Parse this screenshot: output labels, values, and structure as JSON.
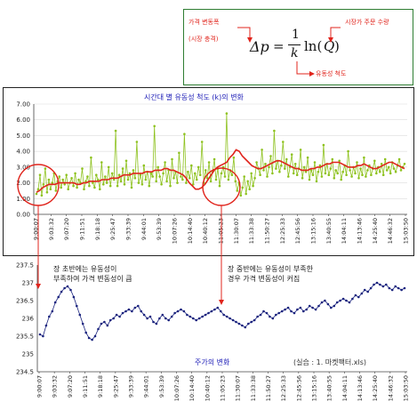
{
  "formula": {
    "lhs": "Δp",
    "eq": "=",
    "frac_num": "1",
    "frac_den": "k",
    "ln": "ln(",
    "q": "Q",
    "close": ")",
    "label_price": "가격 변동폭",
    "label_price_sub": "(시장 충격)",
    "label_q": "시장가 주문 수량",
    "label_k": "유동성 척도",
    "arrow_color": "#e0241c",
    "box_color": "#2e7d32"
  },
  "annotations": {
    "early_line1": "장 초반에는 유동성이",
    "early_line2": "부족하여 가격 변동성이 큼",
    "mid_line1": "장 중반에는 유동성이 부족한",
    "mid_line2": "경우 가격 변동성이 커짐",
    "circle_color": "#e0241c"
  },
  "note": "(실습 : 1. 마켓팩터.xls)",
  "chart_data": [
    {
      "type": "line",
      "title": "시간대 별 유동성 척도 (k)의 변화",
      "xlabel": "",
      "ylabel": "",
      "ylim": [
        0,
        7
      ],
      "yticks": [
        "0.00",
        "1.00",
        "2.00",
        "3.00",
        "4.00",
        "5.00",
        "6.00",
        "7.00"
      ],
      "x_ticks": [
        "9:00:07",
        "9:03:32",
        "9:07:20",
        "9:11:51",
        "9:18:18",
        "9:25:47",
        "9:33:39",
        "9:44:01",
        "9:53:39",
        "10:07:26",
        "10:14:40",
        "10:40:12",
        "11:05:23",
        "11:30:07",
        "11:33:38",
        "11:50:27",
        "12:25:33",
        "12:45:56",
        "13:15:16",
        "13:40:55",
        "14:04:11",
        "14:13:46",
        "14:25:40",
        "14:46:32",
        "15:03:50"
      ],
      "grid": true,
      "legend": "none",
      "series": [
        {
          "color": "#8ec21f",
          "style": "line-markers",
          "values": [
            1.3,
            1.6,
            2.5,
            1.2,
            1.9,
            2.9,
            1.4,
            2.2,
            1.6,
            2.0,
            2.6,
            1.5,
            2.1,
            2.4,
            1.7,
            2.2,
            1.9,
            2.5,
            1.6,
            2.0,
            2.3,
            1.8,
            2.6,
            1.7,
            2.2,
            2.0,
            2.9,
            1.6,
            2.1,
            2.4,
            1.8,
            3.6,
            2.0,
            1.7,
            2.5,
            2.2,
            1.6,
            3.3,
            1.9,
            2.4,
            2.0,
            3.0,
            1.8,
            2.6,
            2.2,
            5.3,
            1.8,
            2.5,
            2.1,
            2.9,
            1.9,
            3.4,
            2.2,
            2.6,
            1.7,
            2.8,
            2.3,
            4.6,
            2.0,
            2.5,
            1.9,
            3.1,
            2.2,
            2.7,
            1.8,
            2.6,
            2.4,
            5.6,
            2.1,
            3.0,
            2.4,
            1.9,
            2.6,
            3.3,
            2.1,
            2.8,
            1.8,
            3.5,
            2.3,
            2.7,
            2.0,
            3.9,
            2.4,
            2.2,
            5.1,
            2.0,
            2.7,
            2.3,
            3.1,
            1.9,
            2.6,
            2.2,
            3.0,
            2.5,
            4.6,
            2.0,
            2.8,
            2.3,
            3.3,
            2.1,
            2.7,
            3.5,
            2.2,
            2.9,
            1.8,
            2.6,
            3.0,
            2.4,
            6.4,
            2.2,
            2.8,
            2.5,
            3.6,
            2.1,
            1.5,
            2.0,
            1.2,
            1.7,
            2.4,
            1.3,
            2.1,
            1.6,
            2.6,
            1.8,
            2.3,
            3.3,
            2.9,
            2.5,
            4.1,
            2.8,
            3.2,
            2.4,
            3.0,
            3.7,
            2.6,
            5.3,
            2.9,
            3.4,
            2.7,
            3.1,
            4.6,
            2.9,
            3.5,
            2.4,
            3.0,
            3.8,
            2.6,
            3.2,
            2.5,
            2.9,
            4.1,
            2.3,
            3.0,
            2.7,
            3.6,
            2.2,
            2.8,
            2.5,
            3.3,
            2.1,
            2.7,
            3.1,
            2.4,
            4.4,
            2.6,
            3.2,
            2.5,
            2.9,
            3.5,
            2.3,
            2.8,
            2.6,
            3.4,
            2.2,
            2.7,
            3.1,
            2.5,
            4.0,
            2.8,
            2.4,
            3.0,
            2.6,
            3.3,
            2.3,
            2.9,
            2.5,
            3.6,
            2.4,
            2.8,
            3.1,
            2.5,
            2.9,
            3.4,
            2.6,
            3.0,
            2.7,
            3.2,
            2.5,
            3.5,
            2.8,
            3.0,
            2.6,
            3.3,
            2.9,
            2.7,
            3.1,
            3.5,
            2.8,
            3.0,
            3.2
          ]
        },
        {
          "color": "#e0241c",
          "style": "line",
          "values": [
            1.4,
            1.5,
            1.7,
            1.8,
            1.9,
            1.9,
            1.9,
            2.0,
            2.0,
            2.0,
            2.0,
            2.0,
            2.0,
            1.9,
            1.9,
            2.0,
            2.0,
            2.1,
            2.1,
            2.1,
            2.1,
            2.2,
            2.2,
            2.2,
            2.3,
            2.3,
            2.3,
            2.4,
            2.5,
            2.5,
            2.5,
            2.6,
            2.6,
            2.6,
            2.6,
            2.7,
            2.7,
            2.7,
            2.8,
            2.8,
            2.8,
            2.9,
            2.9,
            2.8,
            2.8,
            2.7,
            2.6,
            2.5,
            2.3,
            2.0,
            1.8,
            1.6,
            1.6,
            1.7,
            1.9,
            2.2,
            2.5,
            2.8,
            3.0,
            3.1,
            3.2,
            3.3,
            3.6,
            3.8,
            4.1,
            4.0,
            3.7,
            3.5,
            3.3,
            3.1,
            3.0,
            2.9,
            2.9,
            3.0,
            3.1,
            3.2,
            3.3,
            3.4,
            3.4,
            3.3,
            3.2,
            3.1,
            3.0,
            2.9,
            2.9,
            2.8,
            2.8,
            2.8,
            2.9,
            2.9,
            3.0,
            3.0,
            3.1,
            3.2,
            3.2,
            3.3,
            3.3,
            3.3,
            3.2,
            3.1,
            3.0,
            3.0,
            3.0,
            3.1,
            3.1,
            3.2,
            3.1,
            3.0,
            2.9,
            2.9,
            3.0,
            3.1,
            3.2,
            3.3,
            3.3,
            3.2,
            3.1,
            3.0,
            2.9
          ]
        }
      ]
    },
    {
      "type": "line",
      "title": "주가의 변화",
      "xlabel": "",
      "ylabel": "",
      "ylim": [
        234.5,
        237.5
      ],
      "yticks": [
        "234.5",
        "235",
        "235.5",
        "236",
        "236.5",
        "237",
        "237.5"
      ],
      "x_ticks": [
        "9:00:07",
        "9:03:32",
        "9:07:20",
        "9:11:51",
        "9:18:18",
        "9:25:47",
        "9:33:39",
        "9:44:01",
        "9:53:39",
        "10:07:26",
        "10:14:40",
        "10:40:12",
        "11:05:23",
        "11:30:07",
        "11:33:38",
        "11:50:27",
        "12:25:33",
        "12:45:56",
        "13:15:16",
        "13:40:55",
        "14:04:11",
        "14:13:46",
        "14:25:40",
        "14:46:32",
        "15:03:50"
      ],
      "grid": false,
      "legend": "none",
      "series": [
        {
          "color": "#1a237e",
          "style": "line-markers",
          "values": [
            235.55,
            235.5,
            235.8,
            236.05,
            236.2,
            236.45,
            236.6,
            236.75,
            236.85,
            236.9,
            236.8,
            236.6,
            236.35,
            236.1,
            235.85,
            235.6,
            235.45,
            235.4,
            235.5,
            235.7,
            235.85,
            235.9,
            235.8,
            235.95,
            236.0,
            236.1,
            236.05,
            236.15,
            236.2,
            236.25,
            236.2,
            236.3,
            236.35,
            236.2,
            236.1,
            236.0,
            236.05,
            235.9,
            235.85,
            236.0,
            236.1,
            236.0,
            235.95,
            236.05,
            236.15,
            236.2,
            236.25,
            236.2,
            236.1,
            236.05,
            236.0,
            235.95,
            236.0,
            236.05,
            236.1,
            236.15,
            236.2,
            236.25,
            236.3,
            236.2,
            236.1,
            236.05,
            236.0,
            235.95,
            235.9,
            235.85,
            235.8,
            235.75,
            235.85,
            235.9,
            235.95,
            236.05,
            236.1,
            236.2,
            236.15,
            236.05,
            236.0,
            236.1,
            236.15,
            236.2,
            236.25,
            236.3,
            236.2,
            236.15,
            236.25,
            236.3,
            236.2,
            236.25,
            236.35,
            236.3,
            236.25,
            236.35,
            236.45,
            236.5,
            236.4,
            236.3,
            236.35,
            236.45,
            236.5,
            236.55,
            236.5,
            236.45,
            236.55,
            236.65,
            236.6,
            236.7,
            236.8,
            236.75,
            236.85,
            236.95,
            237.0,
            236.95,
            236.9,
            236.95,
            236.85,
            236.8,
            236.9,
            236.85,
            236.8,
            236.85
          ]
        }
      ]
    }
  ]
}
